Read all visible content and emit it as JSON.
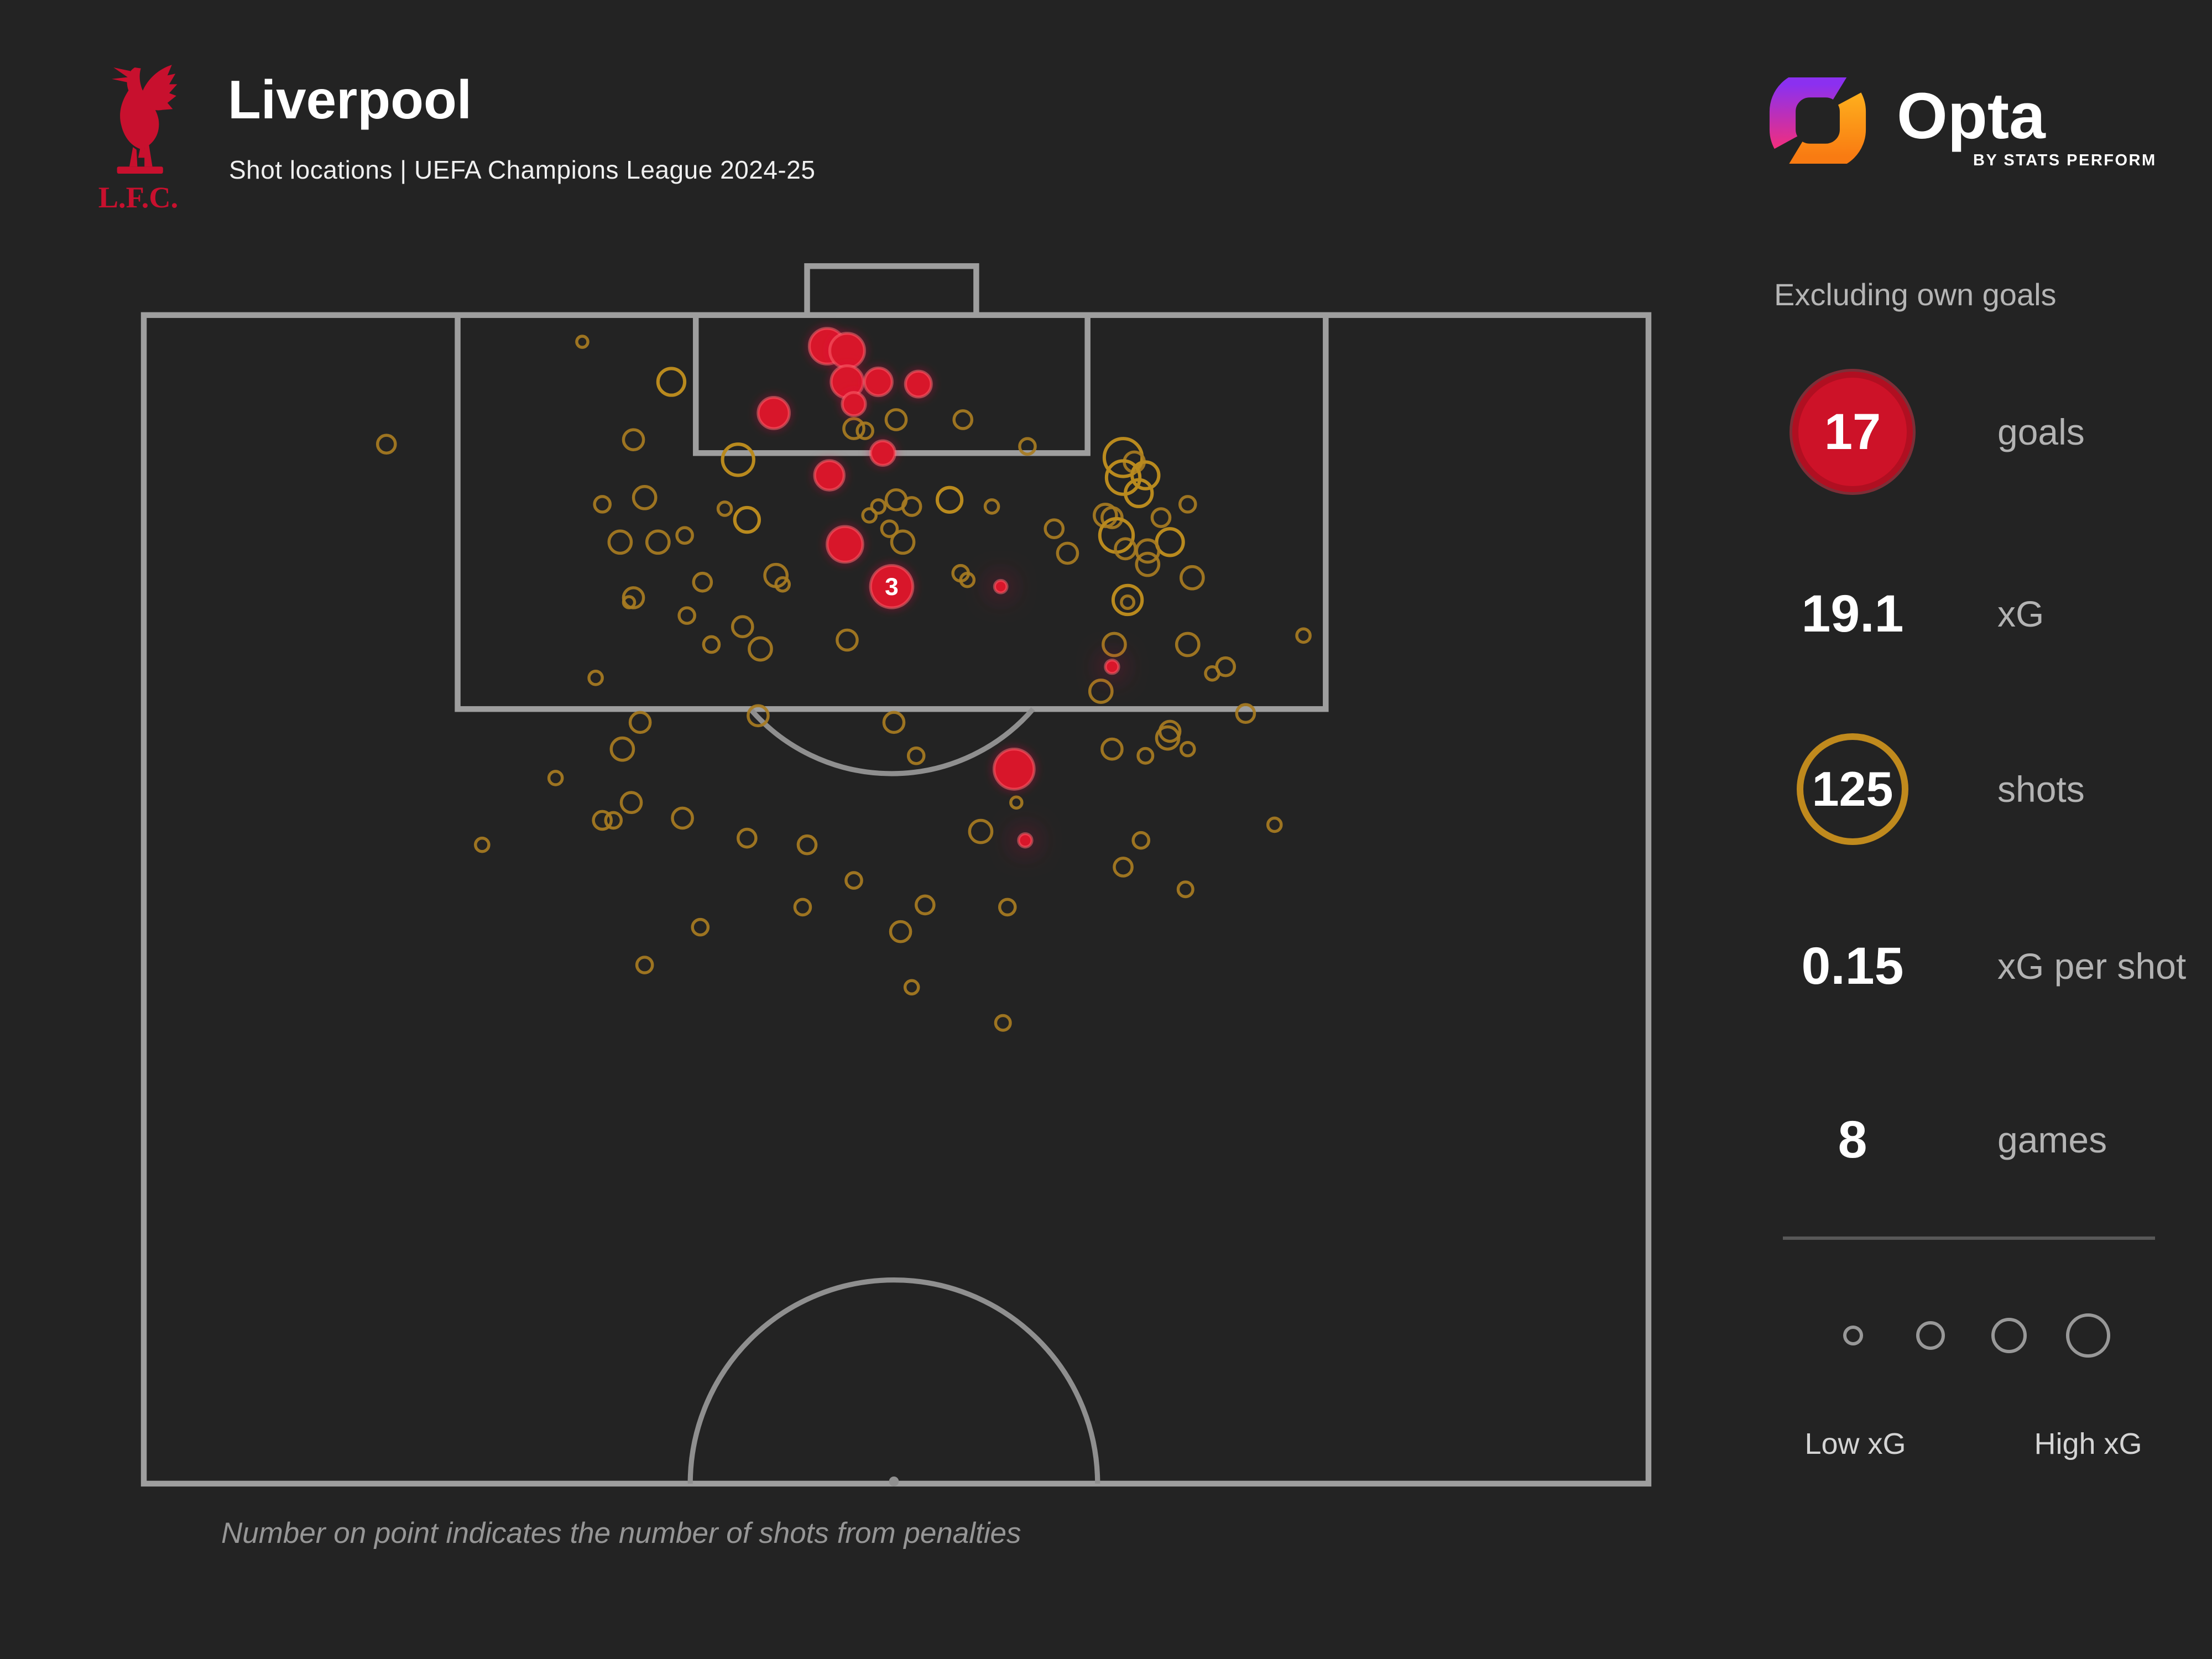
{
  "header": {
    "team": "Liverpool",
    "subtitle": "Shot locations | UEFA Champions League 2024-25",
    "crest_text": "L.F.C."
  },
  "brand": {
    "name": "Opta",
    "byline": "BY STATS PERFORM"
  },
  "panel": {
    "note": "Excluding own goals",
    "stats": [
      {
        "value": "17",
        "label": "goals"
      },
      {
        "value": "19.1",
        "label": "xG"
      },
      {
        "value": "125",
        "label": "shots"
      },
      {
        "value": "0.15",
        "label": "xG per shot"
      },
      {
        "value": "8",
        "label": "games"
      }
    ],
    "legend": {
      "low": "Low xG",
      "high": "High xG"
    }
  },
  "footnote": "Number on point indicates the number of shots from penalties",
  "chart_data": {
    "type": "scatter",
    "title": "Liverpool shot locations, UEFA Champions League 2024-25",
    "coordinate_system": "pitch metres: x 0-68 across attacking goal line (left to right), y 0 at goal line increasing to 52.5 at halfway line; marker radius in metres scales with xG",
    "summary": {
      "goals": 17,
      "xg": 19.1,
      "shots": 125,
      "xg_per_shot": 0.15,
      "games": 8,
      "excludes": "own goals"
    },
    "colors": {
      "goal": "#d8152b",
      "shot_outline": "#a87c22",
      "pitch_line": "#9e9e9e",
      "background": "#232323"
    },
    "legend": {
      "low": "Low xG",
      "high": "High xG"
    },
    "penalty": {
      "x": 33.8,
      "y": 12.2,
      "r": 0.95,
      "label": "3",
      "shots_from_penalties": 3
    },
    "goals": [
      [
        30.9,
        1.4,
        0.8
      ],
      [
        31.8,
        1.6,
        0.78
      ],
      [
        31.8,
        3.0,
        0.72
      ],
      [
        33.2,
        3.0,
        0.62
      ],
      [
        35.0,
        3.1,
        0.58
      ],
      [
        28.5,
        4.4,
        0.7
      ],
      [
        32.1,
        4.0,
        0.52
      ],
      [
        33.4,
        6.2,
        0.55
      ],
      [
        31.0,
        7.2,
        0.66
      ],
      [
        31.7,
        10.3,
        0.8
      ],
      [
        38.7,
        12.2,
        0.28,
        1
      ],
      [
        39.3,
        20.4,
        0.9
      ],
      [
        39.8,
        23.6,
        0.3,
        1
      ],
      [
        43.7,
        15.8,
        0.3,
        1
      ]
    ],
    "shots": [
      [
        19.9,
        1.2,
        0.25
      ],
      [
        23.9,
        3.0,
        0.6
      ],
      [
        22.2,
        5.6,
        0.45
      ],
      [
        26.9,
        6.5,
        0.7
      ],
      [
        11.1,
        5.8,
        0.4
      ],
      [
        20.8,
        8.5,
        0.35
      ],
      [
        22.7,
        8.2,
        0.5
      ],
      [
        27.3,
        9.2,
        0.55
      ],
      [
        21.6,
        10.2,
        0.5
      ],
      [
        23.3,
        10.2,
        0.5
      ],
      [
        24.5,
        9.9,
        0.35
      ],
      [
        25.3,
        12.0,
        0.4
      ],
      [
        22.2,
        12.7,
        0.45
      ],
      [
        22.0,
        12.9,
        0.25
      ],
      [
        24.6,
        13.5,
        0.35
      ],
      [
        25.7,
        14.8,
        0.35
      ],
      [
        27.9,
        15.0,
        0.5
      ],
      [
        20.5,
        16.3,
        0.3
      ],
      [
        27.8,
        18.0,
        0.45
      ],
      [
        32.1,
        5.1,
        0.45
      ],
      [
        32.6,
        5.2,
        0.35
      ],
      [
        34.0,
        4.7,
        0.45
      ],
      [
        37.0,
        4.7,
        0.4
      ],
      [
        39.9,
        5.9,
        0.35
      ],
      [
        34.0,
        8.3,
        0.45
      ],
      [
        34.7,
        8.6,
        0.4
      ],
      [
        36.4,
        8.3,
        0.55
      ],
      [
        38.3,
        8.6,
        0.3
      ],
      [
        33.2,
        8.6,
        0.3
      ],
      [
        32.8,
        9.0,
        0.3
      ],
      [
        33.7,
        9.6,
        0.35
      ],
      [
        34.3,
        10.2,
        0.5
      ],
      [
        41.1,
        9.6,
        0.4
      ],
      [
        41.7,
        10.7,
        0.45
      ],
      [
        43.7,
        9.1,
        0.45
      ],
      [
        36.9,
        11.6,
        0.35
      ],
      [
        37.2,
        11.9,
        0.3
      ],
      [
        26.3,
        8.7,
        0.3
      ],
      [
        27.1,
        14.0,
        0.45
      ],
      [
        31.8,
        14.6,
        0.45
      ],
      [
        28.6,
        11.7,
        0.5
      ],
      [
        28.9,
        12.1,
        0.3
      ],
      [
        44.2,
        6.4,
        0.85
      ],
      [
        44.7,
        6.6,
        0.45
      ],
      [
        44.2,
        7.3,
        0.75
      ],
      [
        45.2,
        7.2,
        0.6
      ],
      [
        44.9,
        8.0,
        0.6
      ],
      [
        47.1,
        8.5,
        0.35
      ],
      [
        45.9,
        9.1,
        0.4
      ],
      [
        43.4,
        9.0,
        0.5
      ],
      [
        43.9,
        9.9,
        0.75
      ],
      [
        46.3,
        10.2,
        0.6
      ],
      [
        44.3,
        10.5,
        0.45
      ],
      [
        45.3,
        10.6,
        0.5
      ],
      [
        45.3,
        11.2,
        0.5
      ],
      [
        47.3,
        11.8,
        0.5
      ],
      [
        44.4,
        12.8,
        0.65
      ],
      [
        44.4,
        12.9,
        0.28
      ],
      [
        43.8,
        14.8,
        0.5
      ],
      [
        47.1,
        14.8,
        0.5
      ],
      [
        48.8,
        15.8,
        0.4
      ],
      [
        48.2,
        16.1,
        0.3
      ],
      [
        52.3,
        14.4,
        0.3
      ],
      [
        49.7,
        17.9,
        0.4
      ],
      [
        46.2,
        19.0,
        0.5
      ],
      [
        43.2,
        16.9,
        0.5
      ],
      [
        22.5,
        18.3,
        0.45
      ],
      [
        21.7,
        19.5,
        0.5
      ],
      [
        18.7,
        20.8,
        0.3
      ],
      [
        22.1,
        21.9,
        0.45
      ],
      [
        20.8,
        22.7,
        0.4
      ],
      [
        21.3,
        22.7,
        0.35
      ],
      [
        24.4,
        22.6,
        0.45
      ],
      [
        15.4,
        23.8,
        0.3
      ],
      [
        27.3,
        23.5,
        0.4
      ],
      [
        30.0,
        23.8,
        0.4
      ],
      [
        32.1,
        25.4,
        0.35
      ],
      [
        29.8,
        26.6,
        0.35
      ],
      [
        25.2,
        27.5,
        0.35
      ],
      [
        35.3,
        26.5,
        0.4
      ],
      [
        34.2,
        27.7,
        0.45
      ],
      [
        22.7,
        29.2,
        0.35
      ],
      [
        34.7,
        30.2,
        0.3
      ],
      [
        33.9,
        18.3,
        0.45
      ],
      [
        34.9,
        19.8,
        0.35
      ],
      [
        39.4,
        21.9,
        0.25
      ],
      [
        37.8,
        23.2,
        0.5
      ],
      [
        43.7,
        19.5,
        0.45
      ],
      [
        45.2,
        19.8,
        0.33
      ],
      [
        46.3,
        18.7,
        0.45
      ],
      [
        47.1,
        19.5,
        0.3
      ],
      [
        51.0,
        22.9,
        0.3
      ],
      [
        45.0,
        23.6,
        0.35
      ],
      [
        44.2,
        24.8,
        0.4
      ],
      [
        47.0,
        25.8,
        0.33
      ],
      [
        39.0,
        26.6,
        0.35
      ],
      [
        38.8,
        31.8,
        0.33
      ]
    ]
  }
}
